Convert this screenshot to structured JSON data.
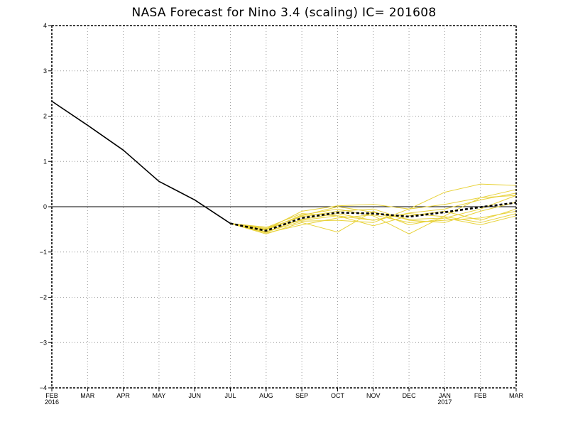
{
  "chart_data": {
    "type": "line",
    "title": "NASA Forecast for Nino 3.4 (scaling) IC= 201608",
    "xlabel": "",
    "ylabel": "",
    "ylim": [
      -4,
      4
    ],
    "yticks": [
      {
        "value": 4,
        "label": "4"
      },
      {
        "value": 3,
        "label": "3"
      },
      {
        "value": 2,
        "label": "2"
      },
      {
        "value": 1,
        "label": "1"
      },
      {
        "value": 0,
        "label": "0"
      },
      {
        "value": -1,
        "label": "−1"
      },
      {
        "value": -2,
        "label": "−2"
      },
      {
        "value": -3,
        "label": "−3"
      },
      {
        "value": -4,
        "label": "−4"
      }
    ],
    "xticks": [
      {
        "label": "FEB",
        "year": "2016"
      },
      {
        "label": "MAR",
        "year": ""
      },
      {
        "label": "APR",
        "year": ""
      },
      {
        "label": "MAY",
        "year": ""
      },
      {
        "label": "JUN",
        "year": ""
      },
      {
        "label": "JUL",
        "year": ""
      },
      {
        "label": "AUG",
        "year": ""
      },
      {
        "label": "SEP",
        "year": ""
      },
      {
        "label": "OCT",
        "year": ""
      },
      {
        "label": "NOV",
        "year": ""
      },
      {
        "label": "DEC",
        "year": ""
      },
      {
        "label": "JAN",
        "year": "2017"
      },
      {
        "label": "FEB",
        "year": ""
      },
      {
        "label": "MAR",
        "year": ""
      }
    ],
    "grid": true,
    "zero_line": true,
    "series": [
      {
        "role": "observed",
        "color": "#000000",
        "style": "solid",
        "x": [
          0,
          1,
          2,
          3,
          4,
          5
        ],
        "values": [
          2.33,
          1.8,
          1.25,
          0.56,
          0.15,
          -0.37
        ]
      },
      {
        "role": "ensemble-mean",
        "color": "#000000",
        "style": "dashed",
        "x": [
          5,
          6,
          7,
          8,
          9,
          10,
          11,
          12,
          13
        ],
        "values": [
          -0.37,
          -0.53,
          -0.25,
          -0.13,
          -0.15,
          -0.22,
          -0.12,
          -0.01,
          0.09
        ]
      }
    ],
    "members_color": "#e8d23a",
    "members": [
      {
        "x": [
          5,
          6,
          7,
          8,
          9,
          10,
          11,
          12,
          13
        ],
        "values": [
          -0.37,
          -0.55,
          -0.28,
          -0.15,
          -0.3,
          -0.14,
          -0.05,
          0.15,
          0.3
        ]
      },
      {
        "x": [
          5,
          6,
          7,
          8,
          9,
          10,
          11,
          12,
          13
        ],
        "values": [
          -0.37,
          -0.5,
          -0.1,
          0.02,
          0.05,
          -0.05,
          0.32,
          0.5,
          0.47
        ]
      },
      {
        "x": [
          5,
          6,
          7,
          8,
          9,
          10,
          11,
          12,
          13
        ],
        "values": [
          -0.37,
          -0.6,
          -0.35,
          -0.56,
          -0.1,
          -0.4,
          -0.25,
          -0.05,
          0.25
        ]
      },
      {
        "x": [
          5,
          6,
          7,
          8,
          9,
          10,
          11,
          12,
          13
        ],
        "values": [
          -0.37,
          -0.45,
          -0.3,
          -0.2,
          -0.42,
          -0.2,
          -0.1,
          -0.3,
          -0.05
        ]
      },
      {
        "x": [
          5,
          6,
          7,
          8,
          9,
          10,
          11,
          12,
          13
        ],
        "values": [
          -0.37,
          -0.52,
          -0.18,
          -0.05,
          -0.2,
          -0.6,
          -0.2,
          0.2,
          0.38
        ]
      },
      {
        "x": [
          5,
          6,
          7,
          8,
          9,
          10,
          11,
          12,
          13
        ],
        "values": [
          -0.37,
          -0.48,
          -0.22,
          -0.1,
          -0.05,
          -0.3,
          -0.35,
          -0.1,
          0.1
        ]
      },
      {
        "x": [
          5,
          6,
          7,
          8,
          9,
          10,
          11,
          12,
          13
        ],
        "values": [
          -0.37,
          -0.56,
          -0.32,
          -0.3,
          -0.35,
          -0.05,
          0.05,
          0.2,
          0.25
        ]
      },
      {
        "x": [
          5,
          6,
          7,
          8,
          9,
          10,
          11,
          12,
          13
        ],
        "values": [
          -0.37,
          -0.5,
          -0.2,
          0.0,
          -0.12,
          -0.28,
          -0.25,
          -0.4,
          -0.2
        ]
      },
      {
        "x": [
          5,
          6,
          7,
          8,
          9,
          10,
          11,
          12,
          13
        ],
        "values": [
          -0.37,
          -0.58,
          -0.4,
          -0.25,
          -0.18,
          -0.35,
          -0.3,
          -0.25,
          -0.1
        ]
      },
      {
        "x": [
          5,
          6,
          7,
          8,
          9,
          10,
          11,
          12,
          13
        ],
        "values": [
          -0.37,
          -0.46,
          -0.15,
          -0.2,
          -0.3,
          -0.15,
          -0.22,
          -0.35,
          -0.15
        ]
      }
    ]
  }
}
